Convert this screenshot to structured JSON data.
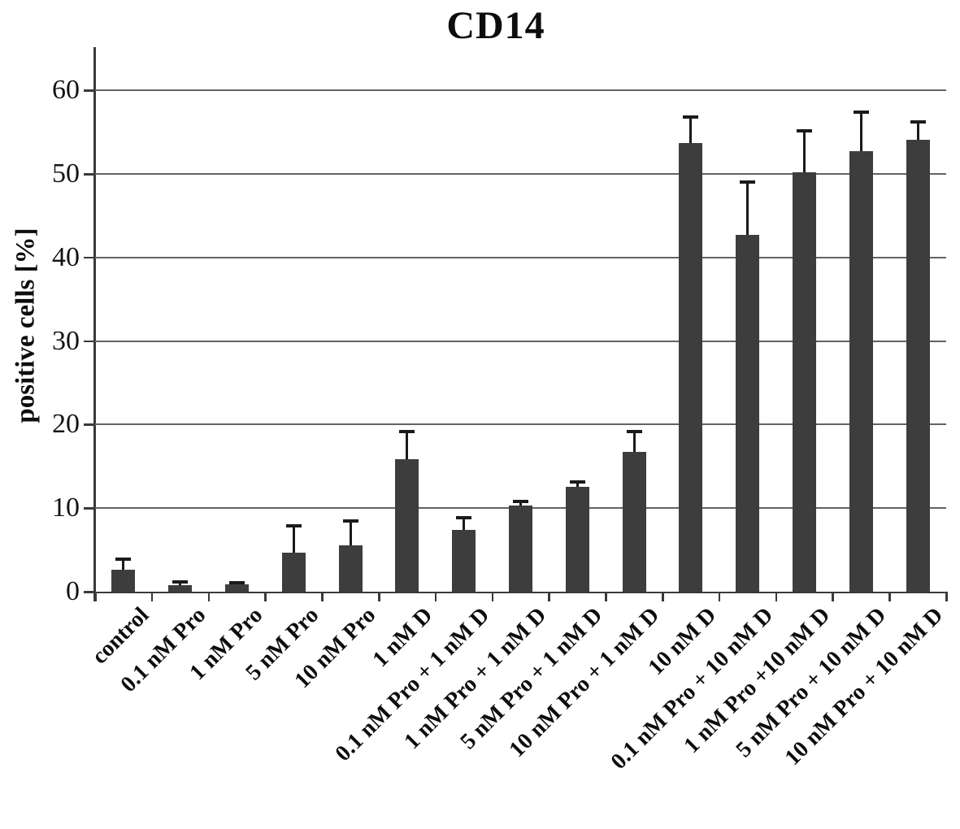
{
  "title": "CD14",
  "y_axis_title": "positive cells [%]",
  "colors": {
    "bar": "#3d3d3d",
    "axis": "#3a3a3a",
    "grid": "#636363",
    "error_bar": "#1a1a1a",
    "text": "#0d0d0d",
    "background": "#ffffff"
  },
  "chart_data": {
    "type": "bar",
    "title": "CD14",
    "xlabel": "",
    "ylabel": "positive cells [%]",
    "categories": [
      "control",
      "0.1 nM Pro",
      "1 nM Pro",
      "5 nM Pro",
      "10 nM Pro",
      "1 nM D",
      "0.1 nM Pro + 1 nM D",
      "1 nM Pro + 1 nM D",
      "5 nM Pro + 1 nM D",
      "10 nM Pro + 1 nM D",
      "10 nM D",
      "0.1 nM Pro + 10 nM D",
      "1 nM Pro +10 nM D",
      "5 nM Pro + 10 nM D",
      "10 nM Pro + 10 nM D"
    ],
    "values": [
      2.6,
      0.8,
      0.9,
      4.7,
      5.5,
      15.9,
      7.4,
      10.3,
      12.6,
      16.7,
      53.7,
      42.7,
      50.2,
      52.7,
      54.1
    ],
    "errors_up": [
      1.3,
      0.4,
      0.2,
      3.2,
      3.0,
      3.3,
      1.5,
      0.5,
      0.5,
      2.5,
      3.1,
      6.3,
      5.0,
      4.7,
      2.1
    ],
    "ylim": [
      0,
      65.2
    ],
    "yticks": [
      0,
      10,
      20,
      30,
      40,
      50,
      60
    ],
    "grid": "horizontal gridlines on",
    "legend": "none",
    "error_bars": "upper, capped"
  }
}
